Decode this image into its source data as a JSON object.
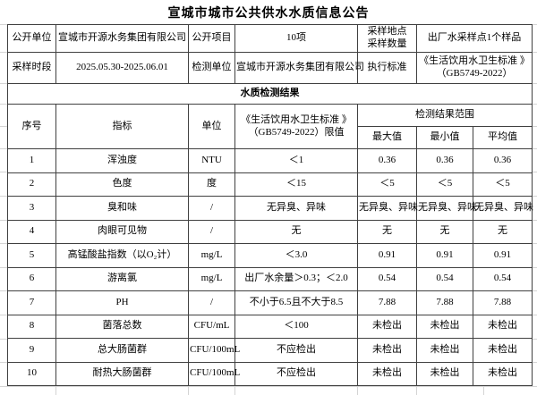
{
  "title": "宣城市城市公共供水水质信息公告",
  "colors": {
    "border": "#404040",
    "gridline": "#d4d4d4",
    "text": "#000000",
    "background": "#ffffff"
  },
  "info_table": {
    "row1": {
      "label1": "公开单位",
      "value1": "宣城市开源水务集团有限公司",
      "label2": "公开项目",
      "value2": "10项",
      "label3_line1": "采样地点",
      "label3_line2": "采样数量",
      "value3": "出厂水采样点1个样品"
    },
    "row2": {
      "label1": "采样时段",
      "value1": "2025.05.30-2025.06.01",
      "label2": "检测单位",
      "value2": "宣城市开源水务集团有限公司",
      "label3": "执行标准",
      "value3_line1": "《生活饮用水卫生标准 》",
      "value3_line2": "（GB5749-2022）"
    }
  },
  "section_title": "水质检测结果",
  "results_table": {
    "headers": {
      "col_no": "序号",
      "col_indicator": "指标",
      "col_unit": "单位",
      "col_limit_line1": "《生活饮用水卫生标准 》",
      "col_limit_line2": "（GB5749-2022）限值",
      "group_range": "检测结果范围",
      "col_max": "最大值",
      "col_min": "最小值",
      "col_avg": "平均值"
    },
    "rows": [
      {
        "no": "1",
        "indicator": "浑浊度",
        "unit": "NTU",
        "limit": "＜1",
        "max": "0.36",
        "min": "0.36",
        "avg": "0.36"
      },
      {
        "no": "2",
        "indicator": "色度",
        "unit": "度",
        "limit": "＜15",
        "max": "＜5",
        "min": "＜5",
        "avg": "＜5"
      },
      {
        "no": "3",
        "indicator": "臭和味",
        "unit": "/",
        "limit": "无异臭、异味",
        "max": "无异臭、异味",
        "min": "无异臭、异味",
        "avg": "无异臭、异味"
      },
      {
        "no": "4",
        "indicator": "肉眼可见物",
        "unit": "/",
        "limit": "无",
        "max": "无",
        "min": "无",
        "avg": "无"
      },
      {
        "no": "5",
        "indicator": "高锰酸盐指数（以O₂计）",
        "unit": "mg/L",
        "limit": "＜3.0",
        "max": "0.91",
        "min": "0.91",
        "avg": "0.91"
      },
      {
        "no": "6",
        "indicator": "游离氯",
        "unit": "mg/L",
        "limit": "出厂水余量＞0.3；＜2.0",
        "max": "0.54",
        "min": "0.54",
        "avg": "0.54"
      },
      {
        "no": "7",
        "indicator": "PH",
        "unit": "/",
        "limit": "不小于6.5且不大于8.5",
        "max": "7.88",
        "min": "7.88",
        "avg": "7.88"
      },
      {
        "no": "8",
        "indicator": "菌落总数",
        "unit": "CFU/mL",
        "limit": "＜100",
        "max": "未检出",
        "min": "未检出",
        "avg": "未检出"
      },
      {
        "no": "9",
        "indicator": "总大肠菌群",
        "unit": "CFU/100mL",
        "limit": "不应检出",
        "max": "未检出",
        "min": "未检出",
        "avg": "未检出"
      },
      {
        "no": "10",
        "indicator": "耐热大肠菌群",
        "unit": "CFU/100mL",
        "limit": "不应检出",
        "max": "未检出",
        "min": "未检出",
        "avg": "未检出"
      }
    ]
  }
}
